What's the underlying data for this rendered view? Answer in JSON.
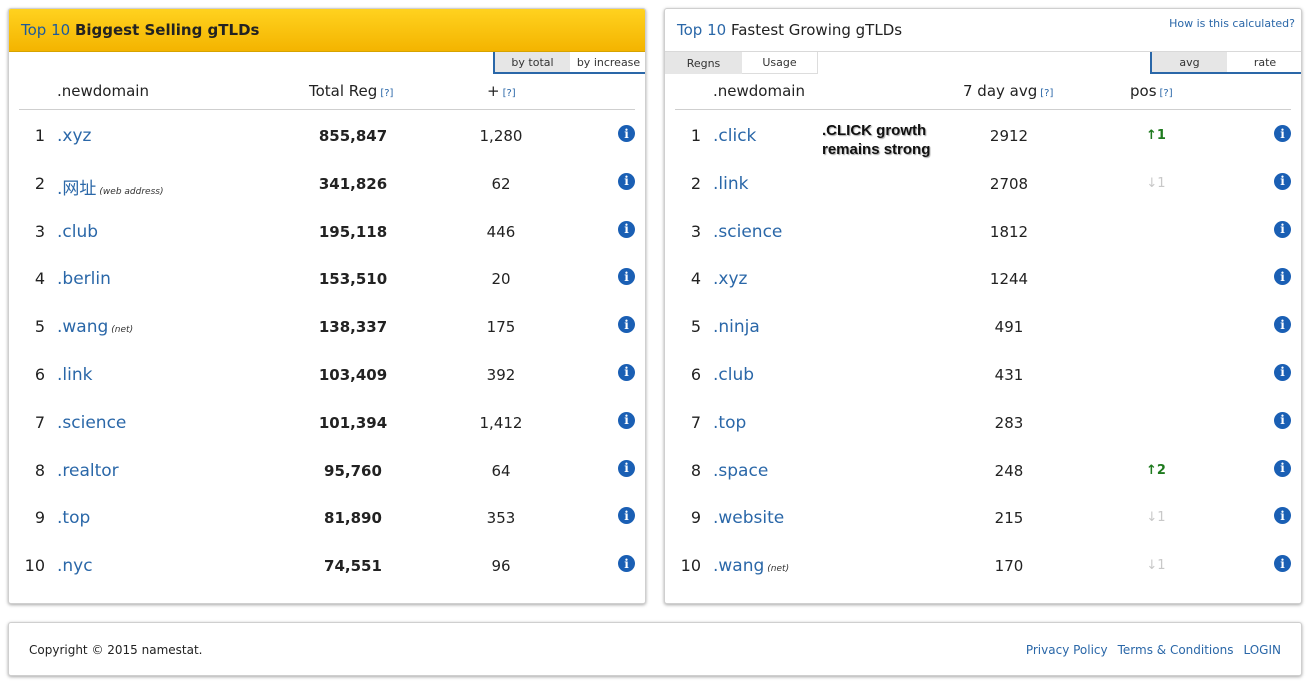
{
  "left": {
    "title_a": "Top 10",
    "title_b": "Biggest Selling gTLDs",
    "toggle": {
      "opt1": "by total",
      "opt2": "by increase"
    },
    "headers": {
      "domain": ".newdomain",
      "total": "Total Reg",
      "plus": "+",
      "help": "[?]"
    },
    "rows": [
      {
        "rank": "1",
        "domain": ".xyz",
        "note": "",
        "total": "855,847",
        "plus": "1,280"
      },
      {
        "rank": "2",
        "domain": ".网址",
        "note": "(web address)",
        "total": "341,826",
        "plus": "62"
      },
      {
        "rank": "3",
        "domain": ".club",
        "note": "",
        "total": "195,118",
        "plus": "446"
      },
      {
        "rank": "4",
        "domain": ".berlin",
        "note": "",
        "total": "153,510",
        "plus": "20"
      },
      {
        "rank": "5",
        "domain": ".wang",
        "note": "(net)",
        "total": "138,337",
        "plus": "175"
      },
      {
        "rank": "6",
        "domain": ".link",
        "note": "",
        "total": "103,409",
        "plus": "392"
      },
      {
        "rank": "7",
        "domain": ".science",
        "note": "",
        "total": "101,394",
        "plus": "1,412"
      },
      {
        "rank": "8",
        "domain": ".realtor",
        "note": "",
        "total": "95,760",
        "plus": "64"
      },
      {
        "rank": "9",
        "domain": ".top",
        "note": "",
        "total": "81,890",
        "plus": "353"
      },
      {
        "rank": "10",
        "domain": ".nyc",
        "note": "",
        "total": "74,551",
        "plus": "96"
      }
    ]
  },
  "right": {
    "title_a": "Top 10",
    "title_b": "Fastest Growing gTLDs",
    "how_link": "How is this calculated?",
    "metric_toggle": {
      "opt1": "Regns",
      "opt2": "Usage"
    },
    "toggle": {
      "opt1": "avg",
      "opt2": "rate"
    },
    "headers": {
      "domain": ".newdomain",
      "avg": "7 day avg",
      "pos": "pos",
      "help": "[?]"
    },
    "annotation": {
      "line1": ".CLICK growth",
      "line2": "remains strong"
    },
    "rows": [
      {
        "rank": "1",
        "domain": ".click",
        "note": "",
        "avg": "2912",
        "pos": "↑1",
        "dir": "up"
      },
      {
        "rank": "2",
        "domain": ".link",
        "note": "",
        "avg": "2708",
        "pos": "↓1",
        "dir": "down"
      },
      {
        "rank": "3",
        "domain": ".science",
        "note": "",
        "avg": "1812",
        "pos": "",
        "dir": ""
      },
      {
        "rank": "4",
        "domain": ".xyz",
        "note": "",
        "avg": "1244",
        "pos": "",
        "dir": ""
      },
      {
        "rank": "5",
        "domain": ".ninja",
        "note": "",
        "avg": "491",
        "pos": "",
        "dir": ""
      },
      {
        "rank": "6",
        "domain": ".club",
        "note": "",
        "avg": "431",
        "pos": "",
        "dir": ""
      },
      {
        "rank": "7",
        "domain": ".top",
        "note": "",
        "avg": "283",
        "pos": "",
        "dir": ""
      },
      {
        "rank": "8",
        "domain": ".space",
        "note": "",
        "avg": "248",
        "pos": "↑2",
        "dir": "up"
      },
      {
        "rank": "9",
        "domain": ".website",
        "note": "",
        "avg": "215",
        "pos": "↓1",
        "dir": "down"
      },
      {
        "rank": "10",
        "domain": ".wang",
        "note": "(net)",
        "avg": "170",
        "pos": "↓1",
        "dir": "down"
      }
    ]
  },
  "footer": {
    "copyright": "Copyright © 2015 namestat.",
    "links": [
      "Privacy Policy",
      "Terms & Conditions",
      "LOGIN"
    ]
  },
  "icons": {
    "info": "info-icon",
    "up": "arrow-up-icon",
    "down": "arrow-down-icon"
  }
}
